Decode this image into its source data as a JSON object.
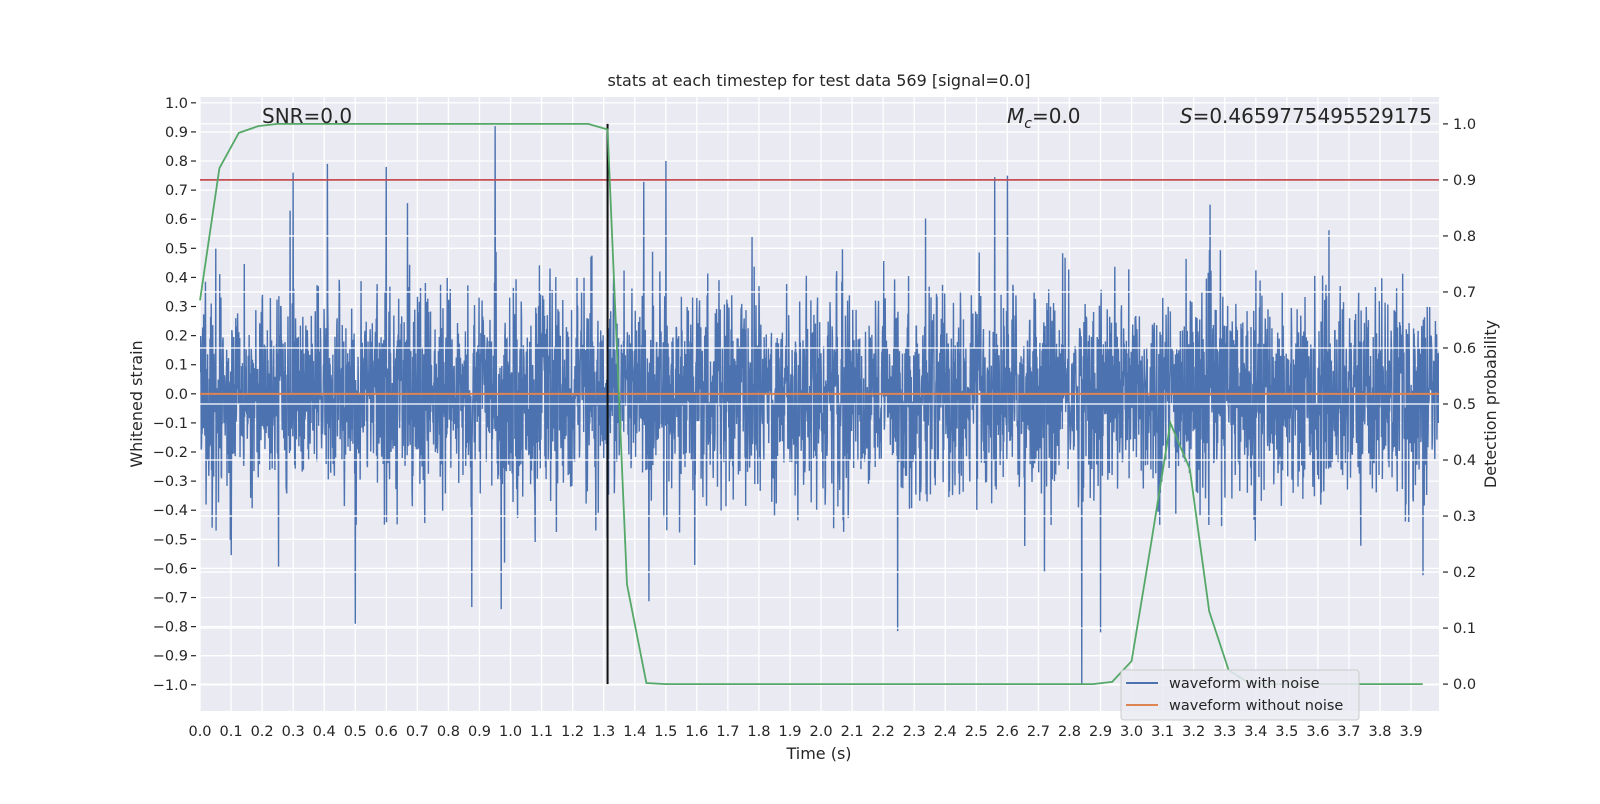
{
  "chart_data": {
    "type": "line",
    "title": "stats at each timestep for test data 569 [signal=0.0]",
    "xlabel": "Time (s)",
    "ylabel_left": "Whitened strain",
    "ylabel_right": "Detection probability",
    "xlim": [
      0,
      3.99
    ],
    "ylim_left": [
      -1.09,
      1.02
    ],
    "ylim_right": [
      -0.048,
      1.048
    ],
    "grid": true,
    "xticks": [
      "0.0",
      "0.1",
      "0.2",
      "0.3",
      "0.4",
      "0.5",
      "0.6",
      "0.7",
      "0.8",
      "0.9",
      "1.0",
      "1.1",
      "1.2",
      "1.3",
      "1.4",
      "1.5",
      "1.6",
      "1.7",
      "1.8",
      "1.9",
      "2.0",
      "2.1",
      "2.2",
      "2.3",
      "2.4",
      "2.5",
      "2.6",
      "2.7",
      "2.8",
      "2.9",
      "3.0",
      "3.1",
      "3.2",
      "3.3",
      "3.4",
      "3.5",
      "3.6",
      "3.7",
      "3.8",
      "3.9"
    ],
    "yticks_left": [
      "1.0",
      "0.9",
      "0.8",
      "0.7",
      "0.6",
      "0.5",
      "0.4",
      "0.3",
      "0.2",
      "0.1",
      "0.0",
      "−0.1",
      "−0.2",
      "−0.3",
      "−0.4",
      "−0.5",
      "−0.6",
      "−0.7",
      "−0.8",
      "−0.9",
      "−1.0"
    ],
    "yticks_right": [
      "1.0",
      "0.9",
      "0.8",
      "0.7",
      "0.6",
      "0.5",
      "0.4",
      "0.3",
      "0.2",
      "0.1",
      "0.0"
    ],
    "annotations": {
      "snr": "SNR=0.0",
      "mc_symbol": "M",
      "mc_subscript": "c",
      "mc_value": "=0.0",
      "s_symbol": "S",
      "s_value": "=0.4659775495529175"
    },
    "series": [
      {
        "name": "waveform with noise",
        "axis": "left",
        "color": "#4C72B0",
        "kind": "noise",
        "n_samples": 4096,
        "t_range": [
          0,
          4.0
        ],
        "noise_std": 0.17,
        "notable_points": [
          [
            0.95,
            0.92
          ],
          [
            2.84,
            -1.0
          ],
          [
            0.3,
            0.76
          ],
          [
            0.41,
            0.79
          ],
          [
            0.6,
            0.78
          ],
          [
            1.5,
            0.8
          ],
          [
            0.5,
            -0.79
          ],
          [
            2.6,
            0.75
          ],
          [
            2.9,
            -0.82
          ],
          [
            0.97,
            -0.74
          ]
        ]
      },
      {
        "name": "waveform without noise",
        "axis": "left",
        "color": "#DD8452",
        "constant": 0.0
      },
      {
        "name": "detection probability",
        "axis": "right",
        "color": "#55A868",
        "dt": 0.0625,
        "values": [
          0.685,
          0.921,
          0.984,
          0.996,
          1.0,
          1.0,
          1.0,
          1.0,
          1.0,
          1.0,
          1.0,
          1.0,
          1.0,
          1.0,
          1.0,
          1.0,
          1.0,
          1.0,
          1.0,
          1.0,
          1.0,
          0.99,
          0.178,
          0.002,
          0.0,
          0.0,
          0.0,
          0.0,
          0.0,
          0.0,
          0.0,
          0.0,
          0.0,
          0.0,
          0.0,
          0.0,
          0.0,
          0.0,
          0.0,
          0.0,
          0.0,
          0.0,
          0.0,
          0.0,
          0.0,
          0.0,
          0.0,
          0.004,
          0.041,
          0.25,
          0.466,
          0.384,
          0.13,
          0.025,
          0.003,
          0.0,
          0.0,
          0.0,
          0.0,
          0.0,
          0.0,
          0.0,
          0.0,
          0.0
        ]
      }
    ],
    "threshold": {
      "axis": "right",
      "value": 0.9,
      "color": "#C44E52"
    },
    "vline": {
      "axis": "right",
      "t": 1.3125,
      "from": 0.0,
      "to": 1.0,
      "color": "#111111"
    },
    "legend": {
      "placement": "lower-right",
      "entries": [
        {
          "label": "waveform with noise",
          "color": "#4C72B0"
        },
        {
          "label": "waveform without noise",
          "color": "#DD8452"
        }
      ]
    }
  }
}
